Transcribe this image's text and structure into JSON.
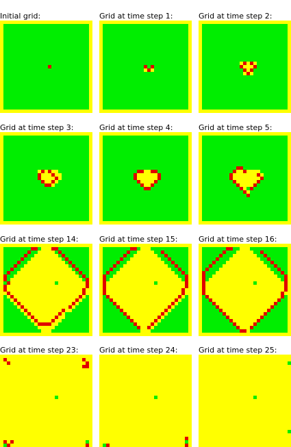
{
  "grid_size": 27,
  "cell_colors": {
    "empty": "#00EE00",
    "burning": "#FFFF00",
    "burnt": "#E00000"
  },
  "panels": [
    {
      "label": "Initial grid:",
      "background": "empty",
      "yellow": [],
      "red": [
        [
          13,
          12
        ]
      ],
      "green": []
    },
    {
      "label": "Grid at time step 1:",
      "background": "empty",
      "yellow": [
        [
          12,
          13
        ],
        [
          13,
          13
        ],
        [
          14,
          13
        ]
      ],
      "red": [
        [
          12,
          12
        ],
        [
          14,
          12
        ],
        [
          13,
          13
        ]
      ],
      "green": []
    },
    {
      "label": "Grid at time step 2:",
      "background": "empty",
      "yellow": [
        [
          11,
          11
        ],
        [
          12,
          11
        ],
        [
          13,
          11
        ],
        [
          14,
          11
        ],
        [
          15,
          11
        ],
        [
          11,
          12
        ],
        [
          12,
          12
        ],
        [
          13,
          12
        ],
        [
          14,
          12
        ],
        [
          15,
          12
        ],
        [
          12,
          13
        ],
        [
          13,
          13
        ],
        [
          14,
          13
        ],
        [
          12,
          14
        ],
        [
          13,
          14
        ],
        [
          14,
          14
        ]
      ],
      "red": [
        [
          12,
          11
        ],
        [
          14,
          11
        ],
        [
          11,
          12
        ],
        [
          15,
          12
        ],
        [
          12,
          13
        ],
        [
          14,
          13
        ],
        [
          13,
          14
        ]
      ],
      "green": []
    },
    {
      "label": "Grid at time step 3:",
      "background": "empty",
      "yellow": [
        [
          10,
          10
        ],
        [
          11,
          10
        ],
        [
          12,
          10
        ],
        [
          13,
          10
        ],
        [
          14,
          10
        ],
        [
          15,
          10
        ],
        [
          10,
          11
        ],
        [
          11,
          11
        ],
        [
          12,
          11
        ],
        [
          13,
          11
        ],
        [
          14,
          11
        ],
        [
          15,
          11
        ],
        [
          16,
          11
        ],
        [
          10,
          12
        ],
        [
          11,
          12
        ],
        [
          12,
          12
        ],
        [
          13,
          12
        ],
        [
          14,
          12
        ],
        [
          15,
          12
        ],
        [
          16,
          12
        ],
        [
          11,
          13
        ],
        [
          12,
          13
        ],
        [
          13,
          13
        ],
        [
          14,
          13
        ],
        [
          15,
          13
        ],
        [
          12,
          14
        ],
        [
          13,
          14
        ],
        [
          14,
          14
        ]
      ],
      "red": [
        [
          11,
          10
        ],
        [
          13,
          10
        ],
        [
          10,
          11
        ],
        [
          14,
          11
        ],
        [
          14,
          11
        ],
        [
          10,
          12
        ],
        [
          15,
          12
        ],
        [
          11,
          13
        ],
        [
          14,
          13
        ],
        [
          12,
          14
        ],
        [
          13,
          14
        ]
      ],
      "green": []
    },
    {
      "label": "Grid at time step 4:",
      "background": "empty",
      "yellow": [
        [
          10,
          10
        ],
        [
          11,
          10
        ],
        [
          12,
          10
        ],
        [
          13,
          10
        ],
        [
          14,
          10
        ],
        [
          15,
          10
        ],
        [
          9,
          11
        ],
        [
          10,
          11
        ],
        [
          11,
          11
        ],
        [
          12,
          11
        ],
        [
          13,
          11
        ],
        [
          14,
          11
        ],
        [
          15,
          11
        ],
        [
          16,
          11
        ],
        [
          9,
          12
        ],
        [
          10,
          12
        ],
        [
          11,
          12
        ],
        [
          12,
          12
        ],
        [
          13,
          12
        ],
        [
          14,
          12
        ],
        [
          15,
          12
        ],
        [
          16,
          12
        ],
        [
          10,
          13
        ],
        [
          11,
          13
        ],
        [
          12,
          13
        ],
        [
          13,
          13
        ],
        [
          14,
          13
        ],
        [
          15,
          13
        ],
        [
          11,
          14
        ],
        [
          12,
          14
        ],
        [
          13,
          14
        ],
        [
          14,
          14
        ],
        [
          12,
          15
        ],
        [
          13,
          15
        ]
      ],
      "red": [
        [
          10,
          10
        ],
        [
          11,
          10
        ],
        [
          14,
          10
        ],
        [
          15,
          10
        ],
        [
          9,
          11
        ],
        [
          16,
          11
        ],
        [
          9,
          12
        ],
        [
          16,
          12
        ],
        [
          10,
          13
        ],
        [
          15,
          13
        ],
        [
          11,
          14
        ],
        [
          14,
          14
        ],
        [
          12,
          15
        ],
        [
          13,
          15
        ]
      ],
      "green": []
    },
    {
      "label": "Grid at time step 5:",
      "background": "empty",
      "yellow": [
        [
          10,
          10
        ],
        [
          11,
          10
        ],
        [
          12,
          10
        ],
        [
          13,
          10
        ],
        [
          14,
          10
        ],
        [
          15,
          10
        ],
        [
          16,
          10
        ],
        [
          9,
          11
        ],
        [
          10,
          11
        ],
        [
          11,
          11
        ],
        [
          12,
          11
        ],
        [
          13,
          11
        ],
        [
          14,
          11
        ],
        [
          15,
          11
        ],
        [
          16,
          11
        ],
        [
          17,
          11
        ],
        [
          9,
          12
        ],
        [
          10,
          12
        ],
        [
          11,
          12
        ],
        [
          12,
          12
        ],
        [
          13,
          12
        ],
        [
          14,
          12
        ],
        [
          15,
          12
        ],
        [
          16,
          12
        ],
        [
          17,
          12
        ],
        [
          10,
          13
        ],
        [
          11,
          13
        ],
        [
          12,
          13
        ],
        [
          13,
          13
        ],
        [
          14,
          13
        ],
        [
          15,
          13
        ],
        [
          16,
          13
        ],
        [
          11,
          14
        ],
        [
          12,
          14
        ],
        [
          13,
          14
        ],
        [
          14,
          14
        ],
        [
          15,
          14
        ],
        [
          12,
          15
        ],
        [
          13,
          15
        ],
        [
          14,
          15
        ],
        [
          13,
          16
        ]
      ],
      "red": [
        [
          10,
          9
        ],
        [
          11,
          9
        ],
        [
          9,
          10
        ],
        [
          12,
          10
        ],
        [
          8,
          11
        ],
        [
          16,
          11
        ],
        [
          8,
          12
        ],
        [
          17,
          12
        ],
        [
          9,
          13
        ],
        [
          16,
          13
        ],
        [
          10,
          14
        ],
        [
          15,
          14
        ],
        [
          11,
          15
        ],
        [
          14,
          15
        ],
        [
          12,
          16
        ],
        [
          13,
          17
        ]
      ],
      "green": [
        [
          13,
          15
        ]
      ]
    },
    {
      "label": "Grid at time step 14:",
      "background": "burning",
      "yellow": [],
      "red": [
        [
          8,
          0
        ],
        [
          9,
          0
        ],
        [
          14,
          0
        ],
        [
          15,
          0
        ],
        [
          7,
          1
        ],
        [
          16,
          1
        ],
        [
          6,
          2
        ],
        [
          17,
          2
        ],
        [
          5,
          3
        ],
        [
          18,
          3
        ],
        [
          4,
          4
        ],
        [
          19,
          4
        ],
        [
          3,
          5
        ],
        [
          20,
          5
        ],
        [
          2,
          6
        ],
        [
          21,
          6
        ],
        [
          1,
          7
        ],
        [
          22,
          7
        ],
        [
          0,
          8
        ],
        [
          23,
          8
        ],
        [
          0,
          9
        ],
        [
          24,
          9
        ],
        [
          1,
          10
        ],
        [
          24,
          10
        ],
        [
          0,
          11
        ],
        [
          24,
          11
        ],
        [
          0,
          12
        ],
        [
          23,
          12
        ],
        [
          1,
          13
        ],
        [
          23,
          13
        ],
        [
          2,
          14
        ],
        [
          22,
          14
        ],
        [
          3,
          15
        ],
        [
          21,
          15
        ],
        [
          4,
          16
        ],
        [
          20,
          16
        ],
        [
          5,
          17
        ],
        [
          19,
          17
        ],
        [
          6,
          18
        ],
        [
          17,
          18
        ],
        [
          7,
          19
        ],
        [
          16,
          19
        ],
        [
          8,
          20
        ],
        [
          15,
          20
        ],
        [
          9,
          21
        ],
        [
          14,
          21
        ],
        [
          10,
          22
        ],
        [
          11,
          22
        ],
        [
          12,
          22
        ],
        [
          13,
          22
        ]
      ],
      "green": [
        [
          15,
          10
        ],
        [
          18,
          19
        ]
      ],
      "green_region": "corners"
    },
    {
      "label": "Grid at time step 15:",
      "background": "burning",
      "yellow": [],
      "red": [
        [
          8,
          0
        ],
        [
          9,
          0
        ],
        [
          7,
          1
        ],
        [
          17,
          1
        ],
        [
          6,
          2
        ],
        [
          18,
          2
        ],
        [
          5,
          3
        ],
        [
          19,
          3
        ],
        [
          4,
          4
        ],
        [
          20,
          4
        ],
        [
          3,
          5
        ],
        [
          21,
          5
        ],
        [
          2,
          6
        ],
        [
          22,
          6
        ],
        [
          1,
          7
        ],
        [
          23,
          7
        ],
        [
          0,
          8
        ],
        [
          24,
          8
        ],
        [
          0,
          9
        ],
        [
          24,
          9
        ],
        [
          0,
          10
        ],
        [
          24,
          10
        ],
        [
          0,
          11
        ],
        [
          24,
          11
        ],
        [
          0,
          12
        ],
        [
          23,
          12
        ],
        [
          0,
          13
        ],
        [
          23,
          13
        ],
        [
          1,
          14
        ],
        [
          22,
          14
        ],
        [
          2,
          15
        ],
        [
          21,
          15
        ],
        [
          3,
          16
        ],
        [
          20,
          16
        ],
        [
          4,
          17
        ],
        [
          19,
          17
        ],
        [
          5,
          18
        ],
        [
          18,
          18
        ],
        [
          6,
          19
        ],
        [
          17,
          19
        ],
        [
          7,
          20
        ],
        [
          16,
          20
        ],
        [
          8,
          21
        ],
        [
          15,
          21
        ],
        [
          9,
          22
        ],
        [
          14,
          22
        ],
        [
          10,
          23
        ],
        [
          13,
          23
        ]
      ],
      "green": [
        [
          15,
          10
        ],
        [
          18,
          21
        ]
      ],
      "green_region": "corners"
    },
    {
      "label": "Grid at time step 16:",
      "background": "burning",
      "yellow": [],
      "red": [
        [
          7,
          0
        ],
        [
          8,
          0
        ],
        [
          6,
          1
        ],
        [
          17,
          1
        ],
        [
          5,
          2
        ],
        [
          18,
          2
        ],
        [
          4,
          3
        ],
        [
          19,
          3
        ],
        [
          3,
          4
        ],
        [
          20,
          4
        ],
        [
          2,
          5
        ],
        [
          21,
          5
        ],
        [
          1,
          6
        ],
        [
          22,
          6
        ],
        [
          0,
          7
        ],
        [
          23,
          7
        ],
        [
          0,
          8
        ],
        [
          24,
          8
        ],
        [
          0,
          9
        ],
        [
          24,
          9
        ],
        [
          0,
          10
        ],
        [
          24,
          10
        ],
        [
          0,
          11
        ],
        [
          24,
          11
        ],
        [
          0,
          12
        ],
        [
          24,
          12
        ],
        [
          0,
          13
        ],
        [
          23,
          13
        ],
        [
          1,
          14
        ],
        [
          23,
          14
        ],
        [
          2,
          15
        ],
        [
          22,
          15
        ],
        [
          3,
          16
        ],
        [
          21,
          16
        ],
        [
          4,
          17
        ],
        [
          20,
          17
        ],
        [
          5,
          18
        ],
        [
          19,
          18
        ],
        [
          6,
          19
        ],
        [
          18,
          19
        ],
        [
          7,
          20
        ],
        [
          17,
          20
        ],
        [
          8,
          21
        ],
        [
          16,
          21
        ],
        [
          9,
          22
        ],
        [
          15,
          22
        ],
        [
          10,
          23
        ],
        [
          14,
          23
        ],
        [
          11,
          24
        ],
        [
          12,
          24
        ]
      ],
      "green": [
        [
          15,
          10
        ],
        [
          17,
          22
        ]
      ],
      "green_region": "corners"
    },
    {
      "label": "Grid at time step 23:",
      "background": "burning",
      "yellow": [],
      "red": [
        [
          0,
          0
        ],
        [
          1,
          1
        ],
        [
          23,
          0
        ],
        [
          24,
          1
        ],
        [
          23,
          2
        ],
        [
          24,
          2
        ],
        [
          0,
          24
        ],
        [
          1,
          25
        ],
        [
          2,
          24
        ],
        [
          24,
          25
        ],
        [
          23,
          26
        ]
      ],
      "green": [
        [
          0,
          0
        ],
        [
          15,
          11
        ],
        [
          0,
          25
        ],
        [
          24,
          24
        ],
        [
          24,
          26
        ]
      ]
    },
    {
      "label": "Grid at time step 24:",
      "background": "burning",
      "yellow": [],
      "red": [
        [
          24,
          23
        ],
        [
          24,
          25
        ],
        [
          1,
          25
        ]
      ],
      "green": [
        [
          15,
          11
        ],
        [
          24,
          24
        ],
        [
          0,
          25
        ]
      ]
    },
    {
      "label": "Grid at time step 25:",
      "background": "burning",
      "yellow": [],
      "red": [],
      "green": [
        [
          25,
          1
        ],
        [
          15,
          11
        ],
        [
          25,
          21
        ]
      ]
    }
  ]
}
